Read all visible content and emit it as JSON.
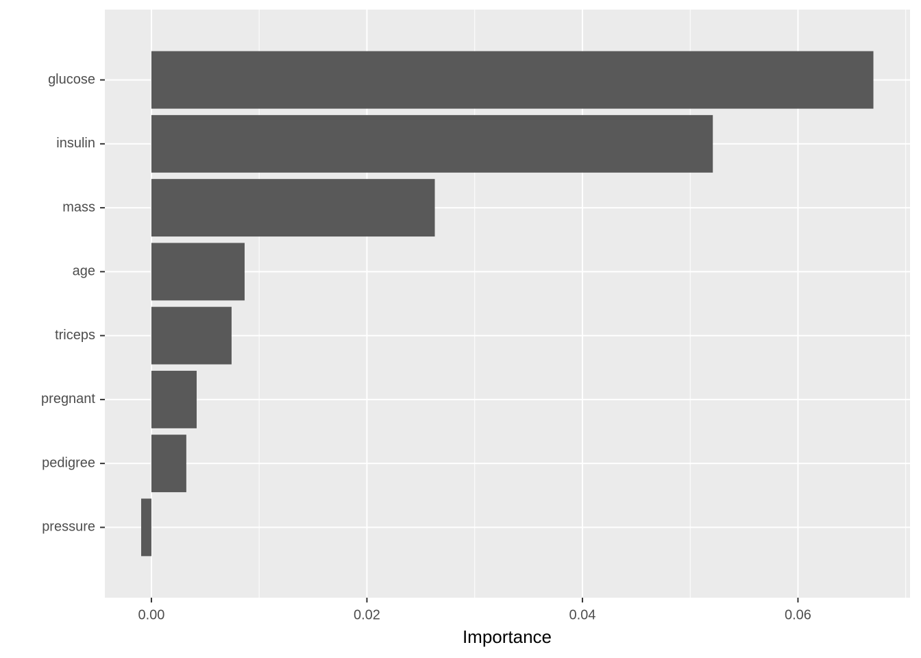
{
  "chart_data": {
    "type": "barh",
    "categories": [
      "glucose",
      "insulin",
      "mass",
      "age",
      "triceps",
      "pregnant",
      "pedigree",
      "pressure"
    ],
    "values": [
      0.067,
      0.0521,
      0.0263,
      0.00865,
      0.00744,
      0.0042,
      0.00324,
      -0.00095
    ],
    "color": "#595959",
    "xlabel": "Importance",
    "xlim": [
      -0.00432,
      0.0704
    ],
    "xticks": [
      {
        "value": 0,
        "label": "0.00"
      },
      0.02,
      0.04,
      0.06
    ],
    "xminorticks": [
      0.01,
      0.03,
      0.05,
      0.07
    ],
    "grid": true
  }
}
